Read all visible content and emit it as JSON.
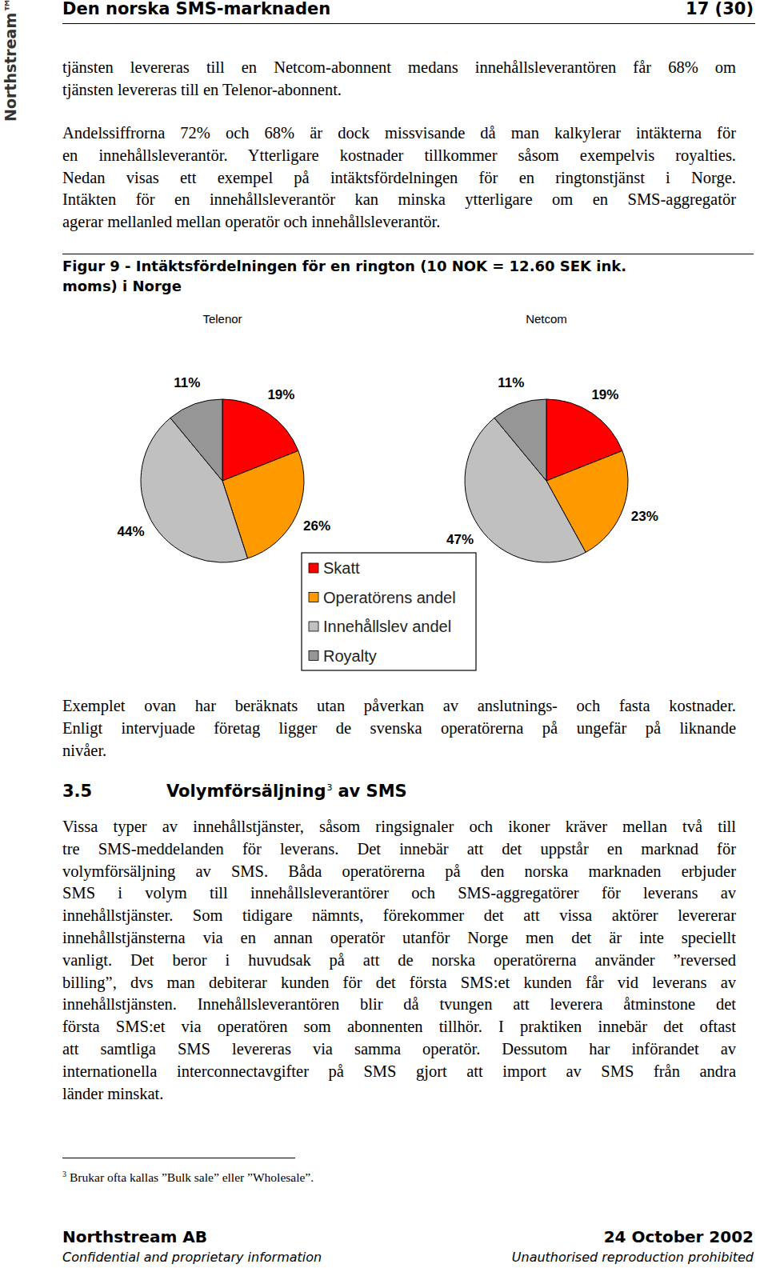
{
  "header": {
    "title": "Den norska SMS-marknaden",
    "page": "17 (30)"
  },
  "logo": "Northstream™",
  "paragraphs_before": [
    [
      "tjänsten levereras till en Netcom-abonnent medans innehållsleverantören får 68% om",
      "tjänsten levereras till en Telenor-abonnent."
    ],
    [
      "Andelssiffrorna 72% och 68% är dock missvisande då man kalkylerar intäkterna för",
      "en innehållsleverantör. Ytterligare kostnader tillkommer såsom exempelvis royalties.",
      "Nedan visas ett exempel på intäktsfördelningen för en ringtonstjänst i Norge.",
      "Intäkten för en innehållsleverantör kan minska ytterligare om en SMS-aggregatör",
      "agerar mellanled mellan operatör och innehållsleverantör."
    ]
  ],
  "figure": {
    "title": [
      "Figur 9 - Intäktsfördelningen för en rington (10 NOK = 12.60 SEK ink.",
      "moms) i Norge"
    ]
  },
  "chart_data": [
    {
      "type": "pie",
      "title": "Telenor",
      "categories": [
        "Skatt",
        "Operatörens andel",
        "Innehållslev andel",
        "Royalty"
      ],
      "values": [
        19,
        26,
        44,
        11
      ],
      "value_labels": [
        "19%",
        "26%",
        "44%",
        "11%"
      ],
      "colors": [
        "#ff0000",
        "#ff9900",
        "#c0c0c0",
        "#969696"
      ],
      "data_labels": true,
      "legend": "bottom"
    },
    {
      "type": "pie",
      "title": "Netcom",
      "categories": [
        "Skatt",
        "Operatörens andel",
        "Innehållslev andel",
        "Royalty"
      ],
      "values": [
        19,
        23,
        47,
        11
      ],
      "value_labels": [
        "19%",
        "23%",
        "47%",
        "11%"
      ],
      "colors": [
        "#ff0000",
        "#ff9900",
        "#c0c0c0",
        "#969696"
      ],
      "data_labels": true
    }
  ],
  "paragraphs_after": [
    [
      "Exemplet ovan har beräknats utan påverkan av anslutnings- och fasta kostnader.",
      "Enligt intervjuade företag ligger de svenska operatörerna på ungefär på liknande",
      "nivåer."
    ]
  ],
  "section": {
    "number": "3.5",
    "title": "Volymförsäljning",
    "footnote_ref": "3",
    "title_rest": "av SMS"
  },
  "section_body": [
    [
      "Vissa typer av innehållstjänster, såsom ringsignaler och ikoner kräver mellan två till",
      "tre SMS-meddelanden för leverans. Det innebär att det uppstår en marknad för",
      "volymförsäljning av SMS. Båda operatörerna på den norska marknaden erbjuder",
      "SMS i volym till innehållsleverantörer och SMS-aggregatörer för leverans av",
      "innehållstjänster. Som tidigare nämnts, förekommer det att vissa aktörer levererar",
      "innehållstjänsterna via en annan operatör utanför Norge men det är inte speciellt",
      "vanligt. Det beror i huvudsak på att de norska operatörerna använder ”reversed",
      "billing”, dvs man debiterar kunden för det första SMS:et kunden får vid leverans av",
      "innehållstjänsten. Innehållsleverantören blir då tvungen att leverera åtminstone det",
      "första SMS:et via operatören som abonnenten tillhör. I praktiken innebär det oftast",
      "att samtliga SMS levereras via samma operatör.  Dessutom har införandet av",
      "internationella interconnectavgifter på SMS gjort att import av SMS från andra",
      "länder minskat."
    ]
  ],
  "footnote": {
    "number": "3",
    "text": "Brukar ofta kallas ”Bulk sale” eller ”Wholesale”."
  },
  "footer": {
    "company": "Northstream AB",
    "date": "24 October 2002",
    "left": "Confidential and proprietary information",
    "right": "Unauthorised reproduction prohibited"
  }
}
